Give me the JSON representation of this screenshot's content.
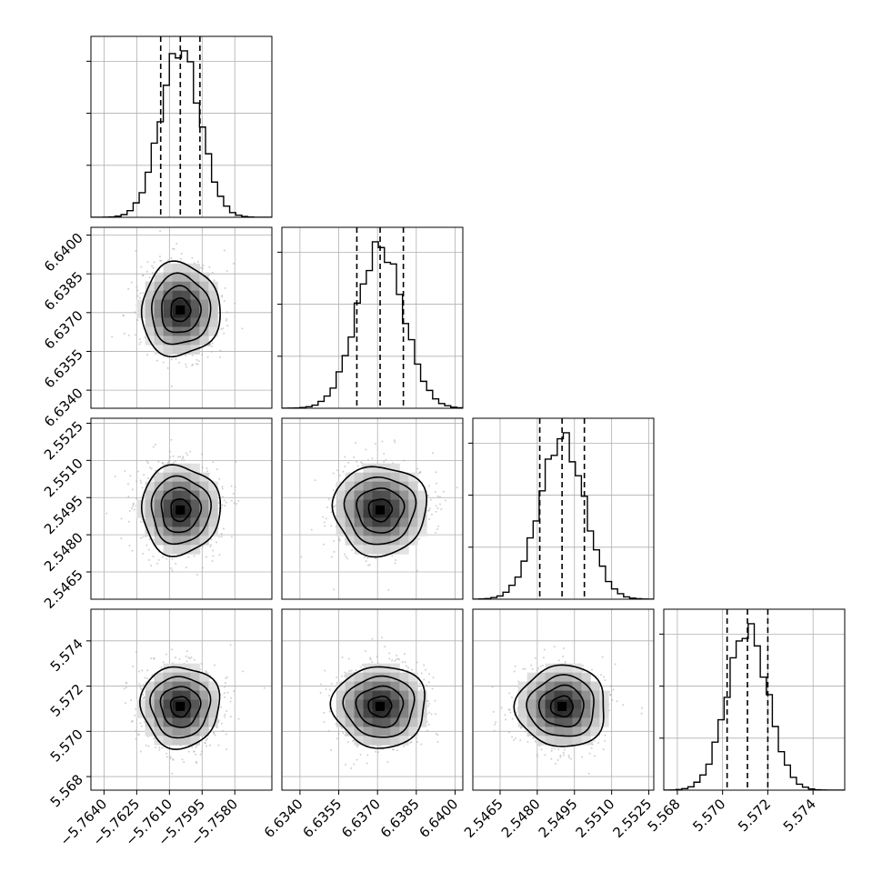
{
  "chart_data": {
    "type": "corner",
    "params": [
      {
        "center": -5.7605,
        "sigma": 0.0009,
        "range": [
          -5.7646,
          -5.7563
        ],
        "ticks": [
          -5.764,
          -5.7625,
          -5.761,
          -5.7595,
          -5.758
        ],
        "tick_labels": [
          "−5.7640",
          "−5.7625",
          "−5.7610",
          "−5.7595",
          "−5.7580"
        ],
        "quantiles": [
          -5.7614,
          -5.7605,
          -5.7596
        ]
      },
      {
        "center": 6.6371,
        "sigma": 0.0009,
        "range": [
          6.6333,
          6.6403
        ],
        "ticks": [
          6.634,
          6.6355,
          6.637,
          6.6385,
          6.64
        ],
        "tick_labels": [
          "6.6340",
          "6.6355",
          "6.6370",
          "6.6385",
          "6.6400"
        ],
        "quantiles": [
          6.6362,
          6.6371,
          6.638
        ]
      },
      {
        "center": 2.549,
        "sigma": 0.0009,
        "range": [
          2.5454,
          2.5527
        ],
        "ticks": [
          2.5465,
          2.548,
          2.5495,
          2.551,
          2.5525
        ],
        "tick_labels": [
          "2.5465",
          "2.5480",
          "2.5495",
          "2.5510",
          "2.5525"
        ],
        "quantiles": [
          2.5481,
          2.549,
          2.5499
        ]
      },
      {
        "center": 5.5711,
        "sigma": 0.0009,
        "range": [
          5.5674,
          5.5754
        ],
        "ticks": [
          5.568,
          5.57,
          5.572,
          5.574
        ],
        "tick_labels": [
          "5.568",
          "5.570",
          "5.572",
          "5.574"
        ],
        "quantiles": [
          5.5702,
          5.5711,
          5.572
        ]
      }
    ],
    "xlabels": [],
    "ylabels": [],
    "grid": true,
    "diag_type": "histogram",
    "offdiag_type": "2d density with contours",
    "hist_bins": 30,
    "contour_levels_sigma": [
      0.5,
      1.0,
      1.5,
      2.0
    ],
    "title": ""
  }
}
